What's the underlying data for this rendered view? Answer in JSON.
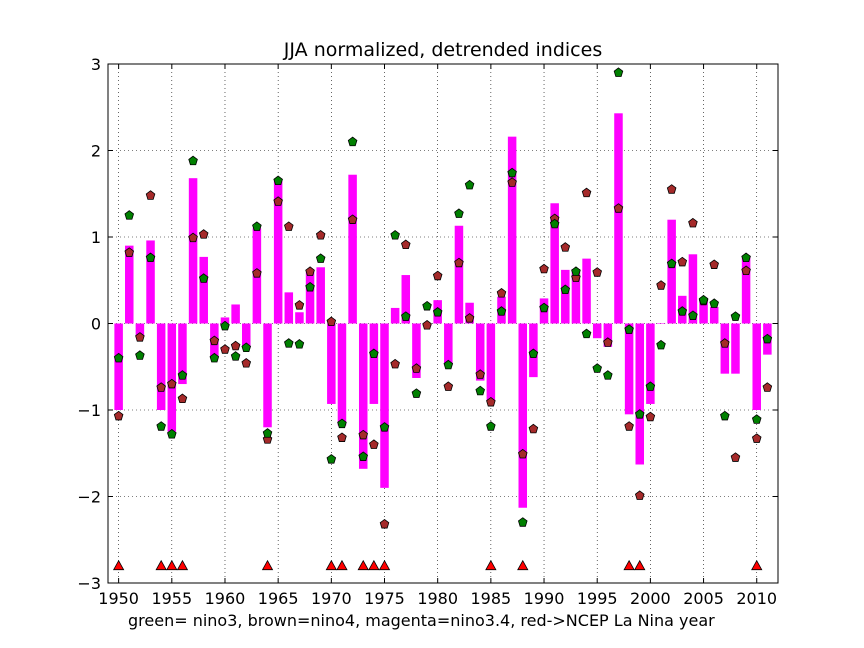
{
  "chart_data": {
    "type": "bar",
    "title": "JJA normalized, detrended indices",
    "caption": "green= nino3, brown=nino4, magenta=nino3.4, red->NCEP La Nina year",
    "xlim": [
      1949,
      2012
    ],
    "ylim": [
      -3,
      3
    ],
    "xticks": [
      1950,
      1955,
      1960,
      1965,
      1970,
      1975,
      1980,
      1985,
      1990,
      1995,
      2000,
      2005,
      2010
    ],
    "yticks": [
      -3,
      -2,
      -1,
      0,
      1,
      2,
      3
    ],
    "grid": true,
    "colors": {
      "nino34_bars": "#ff00ff",
      "nino3_markers": "#008000",
      "nino4_markers": "#a52a2a",
      "lanina_markers": "#ff0000"
    },
    "years": [
      1950,
      1951,
      1952,
      1953,
      1954,
      1955,
      1956,
      1957,
      1958,
      1959,
      1960,
      1961,
      1962,
      1963,
      1964,
      1965,
      1966,
      1967,
      1968,
      1969,
      1970,
      1971,
      1972,
      1973,
      1974,
      1975,
      1976,
      1977,
      1978,
      1979,
      1980,
      1981,
      1982,
      1983,
      1984,
      1985,
      1986,
      1987,
      1988,
      1989,
      1990,
      1991,
      1992,
      1993,
      1994,
      1995,
      1996,
      1997,
      1998,
      1999,
      2000,
      2001,
      2002,
      2003,
      2004,
      2005,
      2006,
      2007,
      2008,
      2009,
      2010,
      2011
    ],
    "nino34": [
      -1.0,
      0.9,
      -0.15,
      0.96,
      -1.0,
      -1.25,
      -0.7,
      1.68,
      0.77,
      -0.38,
      0.07,
      0.22,
      -0.26,
      1.1,
      -1.2,
      1.65,
      0.36,
      0.13,
      0.6,
      0.65,
      -0.93,
      -1.18,
      1.72,
      -1.68,
      -0.93,
      -1.9,
      0.18,
      0.56,
      -0.63,
      -0.03,
      0.27,
      -0.48,
      1.13,
      0.24,
      -0.66,
      -0.9,
      0.31,
      2.16,
      -2.13,
      -0.62,
      0.29,
      1.39,
      0.62,
      0.63,
      0.75,
      -0.17,
      -0.27,
      2.43,
      -1.05,
      -1.63,
      -0.93,
      0.0,
      1.2,
      0.32,
      0.8,
      0.27,
      0.19,
      -0.58,
      -0.58,
      0.76,
      -1.0,
      -0.36
    ],
    "nino3": [
      -0.4,
      1.25,
      -0.37,
      0.76,
      -1.19,
      -1.28,
      -0.6,
      1.88,
      0.52,
      -0.4,
      -0.03,
      -0.38,
      -0.28,
      1.12,
      -1.27,
      1.65,
      -0.23,
      -0.24,
      0.42,
      0.75,
      -1.57,
      -1.16,
      2.1,
      -1.54,
      -0.35,
      -1.2,
      1.02,
      0.08,
      -0.81,
      0.2,
      0.13,
      -0.48,
      1.27,
      1.6,
      -0.78,
      -1.19,
      0.14,
      1.74,
      -2.3,
      -0.35,
      0.18,
      1.15,
      0.39,
      0.6,
      -0.12,
      -0.52,
      -0.6,
      2.9,
      -0.07,
      -1.05,
      -0.73,
      -0.25,
      0.69,
      0.14,
      0.09,
      0.27,
      0.23,
      -1.07,
      0.08,
      0.76,
      -1.11,
      -0.18
    ],
    "nino4": [
      -1.07,
      0.82,
      -0.16,
      1.48,
      -0.74,
      -0.7,
      -0.87,
      0.99,
      1.03,
      -0.2,
      -0.3,
      -0.26,
      -0.46,
      0.58,
      -1.34,
      1.41,
      1.12,
      0.21,
      0.6,
      1.02,
      0.02,
      -1.32,
      1.2,
      -1.29,
      -1.4,
      -2.32,
      -0.47,
      0.91,
      -0.52,
      -0.02,
      0.55,
      -0.73,
      0.7,
      0.06,
      -0.59,
      -0.91,
      0.35,
      1.63,
      -1.51,
      -1.22,
      0.63,
      1.21,
      0.88,
      0.53,
      1.51,
      0.59,
      -0.22,
      1.33,
      -1.19,
      -1.99,
      -1.08,
      0.44,
      1.55,
      0.71,
      1.16,
      0.26,
      0.68,
      -0.23,
      -1.55,
      0.61,
      -1.33,
      -0.74
    ],
    "lanina_years": [
      1950,
      1954,
      1955,
      1956,
      1964,
      1970,
      1971,
      1973,
      1974,
      1975,
      1985,
      1988,
      1998,
      1999,
      2010
    ],
    "lanina_y": -2.8
  }
}
